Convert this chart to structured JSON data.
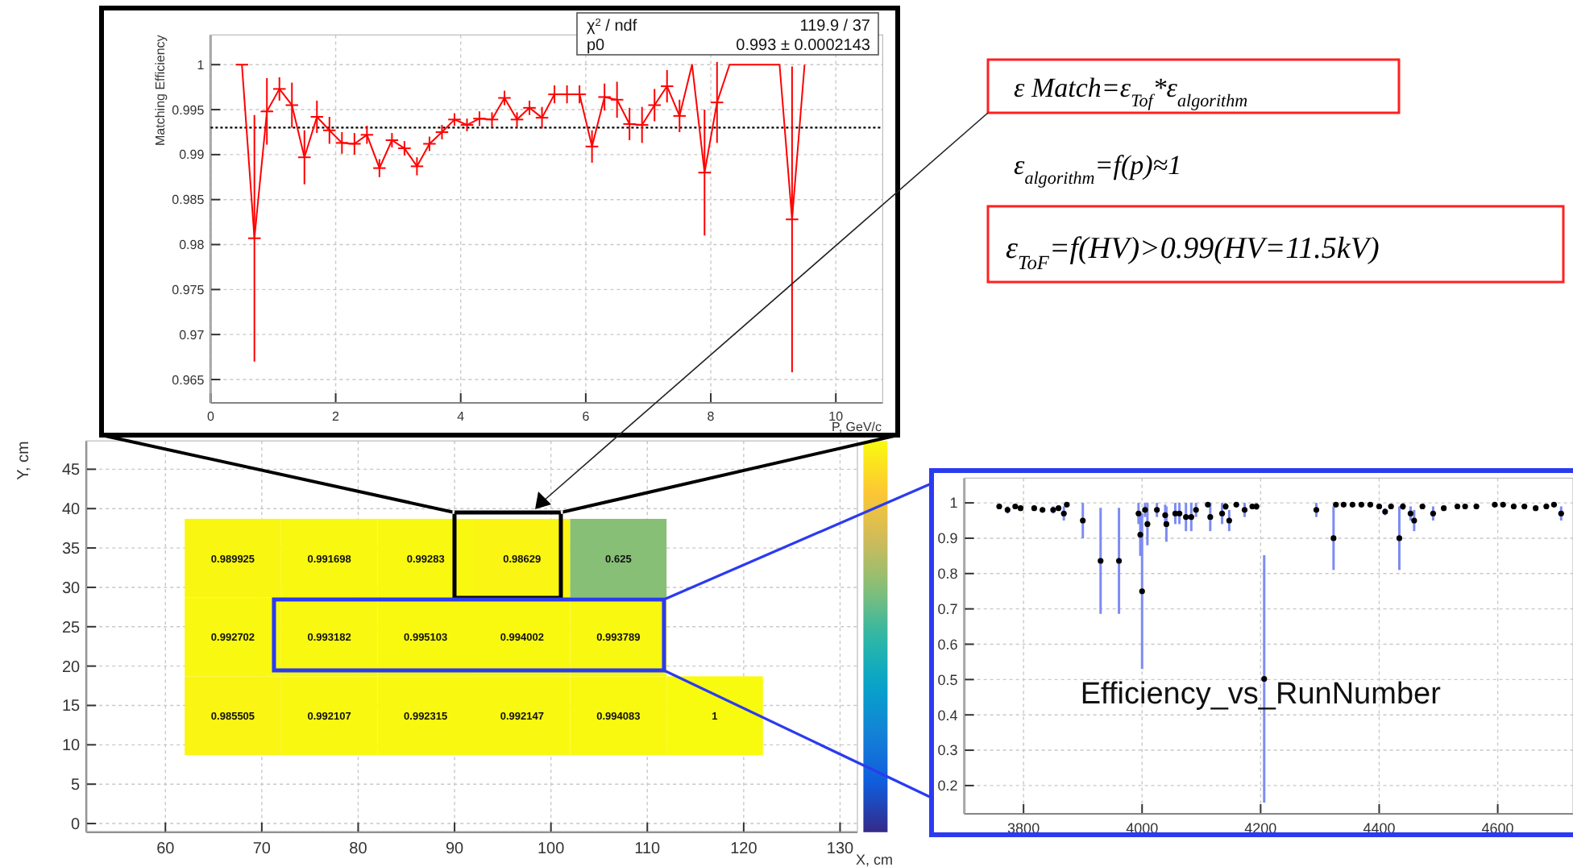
{
  "chart_data": [
    {
      "type": "line",
      "xlabel": "P, GeV/c",
      "ylabel": "Matching Efficiency",
      "x": [
        0.5,
        0.7,
        0.9,
        1.1,
        1.3,
        1.5,
        1.7,
        1.9,
        2.1,
        2.3,
        2.5,
        2.7,
        2.9,
        3.1,
        3.3,
        3.5,
        3.7,
        3.9,
        4.1,
        4.3,
        4.5,
        4.7,
        4.9,
        5.1,
        5.3,
        5.5,
        5.7,
        5.9,
        6.1,
        6.3,
        6.5,
        6.7,
        6.9,
        7.1,
        7.3,
        7.5,
        7.7,
        7.9,
        8.1,
        8.3,
        8.5,
        8.7,
        8.9,
        9.1,
        9.3,
        9.5
      ],
      "series": [
        {
          "color": "#ff0000",
          "values": [
            1.0,
            0.9807,
            0.9948,
            0.9973,
            0.9955,
            0.9897,
            0.9942,
            0.9927,
            0.9913,
            0.9912,
            0.9922,
            0.9885,
            0.9916,
            0.9907,
            0.9887,
            0.9912,
            0.9925,
            0.9939,
            0.9933,
            0.994,
            0.9939,
            0.9963,
            0.9939,
            0.9952,
            0.9941,
            0.9967,
            0.9967,
            0.9967,
            0.9909,
            0.9964,
            0.9961,
            0.9934,
            0.9933,
            0.9955,
            0.9976,
            0.9943,
            1.0,
            0.988,
            0.9958,
            1.0,
            1.0,
            1.0,
            1.0,
            1.0,
            0.9828,
            1.0
          ],
          "errors": [
            null,
            0.0137,
            0.0037,
            0.0013,
            0.0025,
            0.003,
            0.0018,
            0.0015,
            0.0012,
            0.0012,
            0.001,
            0.001,
            0.0008,
            0.0008,
            0.001,
            0.0008,
            0.0008,
            0.0007,
            0.0007,
            0.0008,
            0.0008,
            0.0008,
            0.0008,
            0.0008,
            0.0012,
            0.001,
            0.001,
            0.001,
            0.0018,
            0.0015,
            0.002,
            0.0018,
            0.002,
            0.0018,
            0.0018,
            0.0018,
            null,
            0.007,
            0.0045,
            null,
            null,
            null,
            null,
            null,
            0.017,
            null
          ],
          "xerrors": [
            0.1,
            0.1,
            0.1,
            0.1,
            0.1,
            0.1,
            0.1,
            0.1,
            0.1,
            0.1,
            0.1,
            0.1,
            0.1,
            0.1,
            0.1,
            0.1,
            0.1,
            0.1,
            0.1,
            0.1,
            0.1,
            0.1,
            0.1,
            0.1,
            0.1,
            0.1,
            0.1,
            0.1,
            0.1,
            0.1,
            0.1,
            0.1,
            0.1,
            0.1,
            0.1,
            0.1,
            null,
            0.1,
            0.1,
            null,
            null,
            null,
            null,
            null,
            0.1,
            null
          ]
        }
      ],
      "xlim": [
        0,
        10.75
      ],
      "ylim": [
        0.9624,
        1.0033
      ],
      "xticks": [
        0,
        2,
        4,
        6,
        8,
        10
      ],
      "yticks": [
        0.965,
        0.97,
        0.975,
        0.98,
        0.985,
        0.99,
        0.995,
        1
      ],
      "grid": true,
      "marker": "none",
      "ref_lines": [
        {
          "axis": "y",
          "value": 0.993,
          "color": "#000000",
          "line_style": "dotted"
        }
      ],
      "annotations": [
        "χ$^{2}$ / ndf",
        "119.9 / 37",
        "p0",
        "0.993 ± 0.0002143"
      ]
    },
    {
      "type": "other",
      "annotations": [
        "ε Match=ε$_{Tof}$*ε$_{algorithm}$",
        "ε$_{algorithm}$=f(p)≈1",
        "ε$_{ToF}$=f(HV)>0.99(HV=11.5kV)"
      ]
    },
    {
      "type": "heatmap",
      "xlabel": "X, cm",
      "ylabel": "Y, cm",
      "x": [
        67,
        77,
        87,
        97,
        107,
        117
      ],
      "y": [
        33.7,
        23.7,
        13.7
      ],
      "cells": [
        [
          0.989925,
          0.991698,
          0.99283,
          0.98629,
          0.625,
          null
        ],
        [
          0.992702,
          0.993182,
          0.995103,
          0.994002,
          0.993789,
          null
        ],
        [
          0.985505,
          0.992107,
          0.992315,
          0.992147,
          0.994083,
          1
        ]
      ],
      "data_labels": true,
      "xlim": [
        51.8,
        131.8
      ],
      "ylim": [
        -1.1,
        48.6
      ],
      "xticks": [
        60,
        70,
        80,
        90,
        100,
        110,
        120,
        130
      ],
      "yticks": [
        0,
        5,
        10,
        15,
        20,
        25,
        30,
        35,
        40,
        45
      ],
      "grid": true
    },
    {
      "type": "scatter",
      "title": "Efficiency_vs_RunNumber",
      "x": [
        3759,
        3773,
        3786,
        3795,
        3818,
        3832,
        3850,
        3859,
        3868,
        3873,
        3900,
        3930,
        3961,
        3994,
        3997,
        4000,
        4005,
        4009,
        4025,
        4039,
        4041,
        4056,
        4063,
        4074,
        4083,
        4091,
        4111,
        4115,
        4135,
        4141,
        4147,
        4159,
        4173,
        4186,
        4193,
        4206,
        4294,
        4323,
        4327,
        4340,
        4355,
        4370,
        4385,
        4400,
        4410,
        4420,
        4434,
        4440,
        4453,
        4459,
        4473,
        4491,
        4509,
        4532,
        4545,
        4564,
        4595,
        4609,
        4627,
        4645,
        4664,
        4682,
        4695,
        4707
      ],
      "series": [
        {
          "color": "#000000",
          "values": [
            0.99,
            0.98,
            0.99,
            0.985,
            0.985,
            0.98,
            0.98,
            0.985,
            0.97,
            0.995,
            0.95,
            0.836,
            0.836,
            0.97,
            0.91,
            0.75,
            0.98,
            0.94,
            0.98,
            0.965,
            0.94,
            0.97,
            0.97,
            0.96,
            0.96,
            0.98,
            0.995,
            0.96,
            0.97,
            0.99,
            0.95,
            0.995,
            0.98,
            0.99,
            0.99,
            0.502,
            0.98,
            0.9,
            0.995,
            0.995,
            0.995,
            0.995,
            0.995,
            0.99,
            0.975,
            0.99,
            0.9,
            0.99,
            0.97,
            0.95,
            0.99,
            0.97,
            0.985,
            0.99,
            0.99,
            0.99,
            0.995,
            0.995,
            0.99,
            0.99,
            0.985,
            0.99,
            0.995,
            0.97
          ],
          "errors": [
            null,
            0.01,
            null,
            null,
            null,
            null,
            0.01,
            null,
            0.02,
            null,
            0.05,
            0.15,
            0.15,
            0.03,
            0.06,
            0.22,
            0.02,
            0.06,
            0.02,
            0.03,
            0.05,
            0.03,
            0.03,
            0.04,
            0.04,
            0.02,
            null,
            0.04,
            0.03,
            0.01,
            0.03,
            null,
            0.02,
            null,
            0.01,
            0.35,
            0.02,
            0.09,
            null,
            null,
            null,
            null,
            null,
            null,
            0.01,
            null,
            0.09,
            0.01,
            0.02,
            0.03,
            null,
            0.02,
            null,
            null,
            null,
            null,
            null,
            null,
            null,
            null,
            null,
            null,
            null,
            0.02
          ]
        }
      ],
      "xlim": [
        3700,
        4727
      ],
      "ylim": [
        0.12,
        1.07
      ],
      "xticks": [
        3800,
        4000,
        4200,
        4400,
        4600
      ],
      "yticks": [
        0.2,
        0.3,
        0.4,
        0.5,
        0.6,
        0.7,
        0.8,
        0.9,
        1
      ],
      "grid": true,
      "marker": "circle"
    }
  ]
}
